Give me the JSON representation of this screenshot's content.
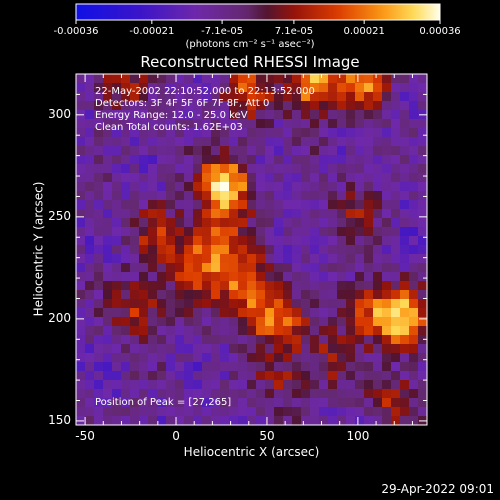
{
  "colorbar": {
    "tick_labels": [
      "-0.00036",
      "-0.00021",
      "-7.1e-05",
      "7.1e-05",
      "0.00021",
      "0.00036"
    ],
    "unit_label": "(photons cm⁻² s⁻¹ asec⁻²)",
    "range": [
      -0.00036,
      0.00036
    ]
  },
  "chart_data": {
    "type": "heatmap",
    "title": "Reconstructed RHESSI Image",
    "xlabel": "Heliocentric X (arcsec)",
    "ylabel": "Heliocentric Y (arcsec)",
    "xlim": [
      -55,
      138
    ],
    "ylim": [
      148,
      320
    ],
    "x_ticks": [
      -50,
      0,
      50,
      100
    ],
    "y_ticks": [
      150,
      200,
      250,
      300
    ],
    "annotations": [
      "22-May-2002 22:10:52.000 to 22:13:52.000",
      "Detectors: 3F 4F 5F 6F 7F 8F, Att 0",
      "Energy Range: 12.0 - 25.0 keV",
      "Clean     Total counts: 1.62E+03"
    ],
    "peak_label": "Position of Peak = [27,265]",
    "peak_position": [
      27,
      265
    ],
    "peak_value": 0.00036,
    "sources": [
      {
        "x": 27,
        "y": 265,
        "amp": 1.0
      },
      {
        "x": 20,
        "y": 238,
        "amp": 0.62
      },
      {
        "x": 35,
        "y": 222,
        "amp": 0.58
      },
      {
        "x": 45,
        "y": 205,
        "amp": 0.55
      },
      {
        "x": 10,
        "y": 220,
        "amp": 0.45
      },
      {
        "x": -20,
        "y": 205,
        "amp": 0.5
      },
      {
        "x": -10,
        "y": 240,
        "amp": 0.45
      },
      {
        "x": 60,
        "y": 195,
        "amp": 0.45
      },
      {
        "x": 125,
        "y": 200,
        "amp": 0.9
      },
      {
        "x": 105,
        "y": 205,
        "amp": 0.55
      },
      {
        "x": 75,
        "y": 315,
        "amp": 0.85
      },
      {
        "x": 105,
        "y": 318,
        "amp": 0.7
      },
      {
        "x": 40,
        "y": 312,
        "amp": 0.5
      },
      {
        "x": -30,
        "y": 315,
        "amp": 0.4
      },
      {
        "x": 100,
        "y": 255,
        "amp": 0.3
      },
      {
        "x": 85,
        "y": 180,
        "amp": 0.35
      },
      {
        "x": 120,
        "y": 160,
        "amp": 0.4
      },
      {
        "x": 60,
        "y": 168,
        "amp": 0.3
      }
    ]
  },
  "timestamp": "29-Apr-2022 09:01"
}
